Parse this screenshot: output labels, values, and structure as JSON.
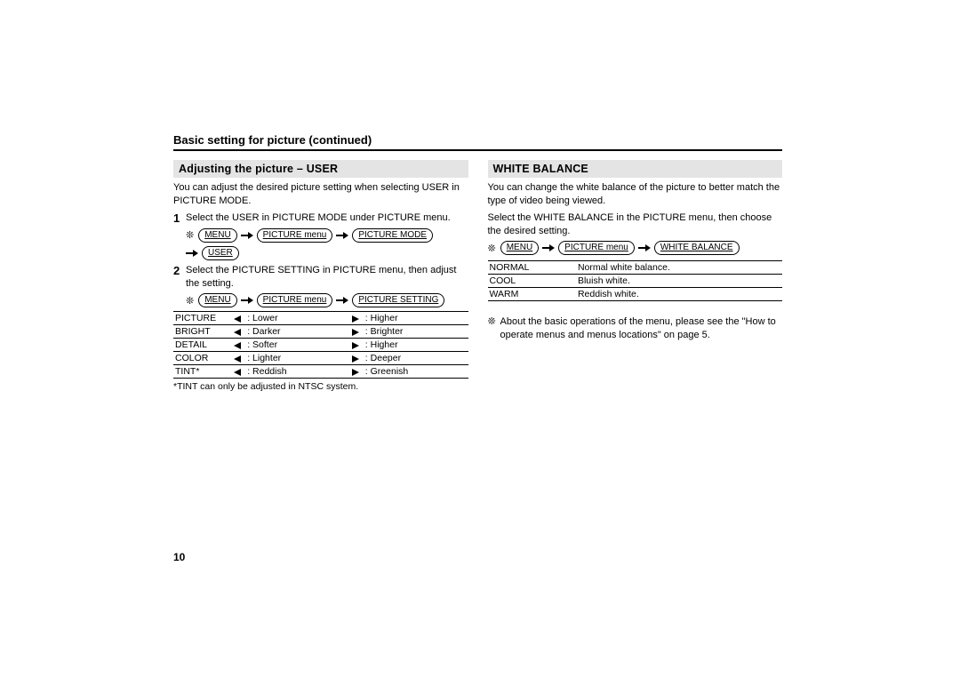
{
  "page_title": "Basic setting for picture (continued)",
  "page_number": "10",
  "symbols": {
    "flake": "❊"
  },
  "left": {
    "header": "Adjusting the picture – USER",
    "intro": "You can adjust the desired picture setting when selecting USER in PICTURE MODE.",
    "step1": {
      "num": "1",
      "text": "Select the USER in PICTURE MODE under PICTURE menu.",
      "path": [
        "MENU",
        "PICTURE menu",
        "PICTURE MODE"
      ],
      "path2": [
        "USER"
      ]
    },
    "step2": {
      "num": "2",
      "text": "Select the PICTURE SETTING in PICTURE menu, then adjust the setting.",
      "path": [
        "MENU",
        "PICTURE menu",
        "PICTURE SETTING"
      ]
    },
    "table": {
      "rows": [
        {
          "name": "PICTURE",
          "left": "Lower",
          "right": "Higher"
        },
        {
          "name": "BRIGHT",
          "left": "Darker",
          "right": "Brighter"
        },
        {
          "name": "DETAIL",
          "left": "Softer",
          "right": "Higher"
        },
        {
          "name": "COLOR",
          "left": "Lighter",
          "right": "Deeper"
        },
        {
          "name": "TINT*",
          "left": "Reddish",
          "right": "Greenish"
        }
      ]
    },
    "footnote": "*TINT can only be adjusted in NTSC system."
  },
  "right": {
    "header": "WHITE BALANCE",
    "intro1": "You can change the white balance of the picture to better match the type of video being viewed.",
    "intro2": "Select the WHITE BALANCE in the PICTURE menu, then choose the desired setting.",
    "path": [
      "MENU",
      "PICTURE menu",
      "WHITE BALANCE"
    ],
    "table": {
      "rows": [
        {
          "name": "NORMAL",
          "desc": "Normal white balance."
        },
        {
          "name": "COOL",
          "desc": "Bluish white."
        },
        {
          "name": "WARM",
          "desc": "Reddish white."
        }
      ]
    },
    "note": "About the basic operations of the menu, please see the \"How to operate menus and menus locations\" on page 5."
  }
}
